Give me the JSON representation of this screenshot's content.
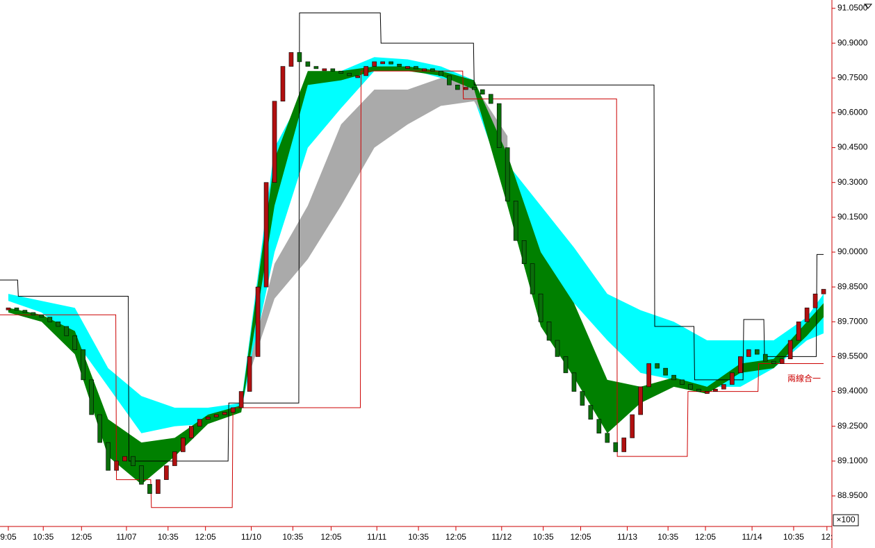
{
  "chart_data": {
    "type": "candlestick",
    "xlim": [
      -1,
      99
    ],
    "ylim": [
      88.88,
      91.08
    ],
    "yticks": [
      {
        "value": 91.05,
        "label": "91.0500"
      },
      {
        "value": 90.9,
        "label": "90.9000"
      },
      {
        "value": 90.75,
        "label": "90.7500"
      },
      {
        "value": 90.6,
        "label": "90.6000"
      },
      {
        "value": 90.45,
        "label": "90.4500"
      },
      {
        "value": 90.3,
        "label": "90.3000"
      },
      {
        "value": 90.15,
        "label": "90.1500"
      },
      {
        "value": 90.0,
        "label": "90.0000"
      },
      {
        "value": 89.85,
        "label": "89.8500"
      },
      {
        "value": 89.7,
        "label": "89.7000"
      },
      {
        "value": 89.55,
        "label": "89.5500"
      },
      {
        "value": 89.4,
        "label": "89.4000"
      },
      {
        "value": 89.25,
        "label": "89.2500"
      },
      {
        "value": 89.1,
        "label": "89.1000"
      },
      {
        "value": 88.95,
        "label": "88.9500"
      }
    ],
    "xticks": [
      {
        "value": 0,
        "label": "9:05"
      },
      {
        "value": 4.2,
        "label": "10:35"
      },
      {
        "value": 8.8,
        "label": "12:05"
      },
      {
        "value": 14.2,
        "label": "11/07"
      },
      {
        "value": 19.2,
        "label": "10:35"
      },
      {
        "value": 23.7,
        "label": "12:05"
      },
      {
        "value": 29.2,
        "label": "11/10"
      },
      {
        "value": 34.2,
        "label": "10:35"
      },
      {
        "value": 38.8,
        "label": "12:05"
      },
      {
        "value": 44.3,
        "label": "11/11"
      },
      {
        "value": 49.3,
        "label": "10:35"
      },
      {
        "value": 53.8,
        "label": "12:05"
      },
      {
        "value": 59.3,
        "label": "11/12"
      },
      {
        "value": 64.3,
        "label": "10:35"
      },
      {
        "value": 68.8,
        "label": "12:05"
      },
      {
        "value": 74.4,
        "label": "11/13"
      },
      {
        "value": 79.3,
        "label": "10:35"
      },
      {
        "value": 83.8,
        "label": "12:05"
      },
      {
        "value": 89.4,
        "label": "11/14"
      },
      {
        "value": 94.4,
        "label": "10:35"
      },
      {
        "value": 98.4,
        "label": "12:"
      }
    ],
    "scale_label": "×100",
    "annotation": "兩線合一",
    "up_color": "#b01010",
    "down_color": "#0a6e0a",
    "candles": {
      "close": [
        89.76,
        89.75,
        89.74,
        89.73,
        89.72,
        89.7,
        89.68,
        89.64,
        89.58,
        89.45,
        89.3,
        89.18,
        89.06,
        89.1,
        89.12,
        89.08,
        89.0,
        88.96,
        89.02,
        89.08,
        89.14,
        89.2,
        89.25,
        89.28,
        89.29,
        89.3,
        89.31,
        89.33,
        89.4,
        89.55,
        89.85,
        90.3,
        90.65,
        90.8,
        90.86,
        90.82,
        90.8,
        90.79,
        90.79,
        90.78,
        90.77,
        90.76,
        90.76,
        90.8,
        90.82,
        90.82,
        90.81,
        90.8,
        90.8,
        90.79,
        90.79,
        90.78,
        90.76,
        90.72,
        90.7,
        90.71,
        90.7,
        90.68,
        90.64,
        90.45,
        90.22,
        90.05,
        89.95,
        89.82,
        89.7,
        89.62,
        89.55,
        89.48,
        89.4,
        89.34,
        89.28,
        89.22,
        89.18,
        89.14,
        89.2,
        89.3,
        89.42,
        89.52,
        89.5,
        89.47,
        89.45,
        89.43,
        89.41,
        89.4,
        89.4,
        89.41,
        89.43,
        89.48,
        89.55,
        89.58,
        89.56,
        89.53,
        89.52,
        89.54,
        89.62,
        89.7,
        89.76,
        89.82,
        89.84
      ]
    },
    "bands": [
      {
        "color": "#00ffff",
        "x": [
          0,
          4,
          8,
          12,
          16,
          20,
          24,
          28,
          32,
          36,
          40,
          44,
          48,
          52,
          56,
          60,
          64,
          68,
          72,
          76,
          80,
          84,
          88,
          92,
          96,
          98
        ],
        "upper": [
          89.82,
          89.79,
          89.76,
          89.5,
          89.38,
          89.33,
          89.33,
          89.35,
          90.45,
          90.72,
          90.78,
          90.84,
          90.83,
          90.8,
          90.74,
          90.38,
          90.2,
          90.02,
          89.82,
          89.75,
          89.7,
          89.62,
          89.62,
          89.62,
          89.72,
          89.82
        ],
        "lower": [
          89.79,
          89.74,
          89.62,
          89.42,
          89.22,
          89.25,
          89.26,
          89.32,
          90.0,
          90.45,
          90.62,
          90.78,
          90.79,
          90.75,
          90.66,
          90.25,
          89.98,
          89.78,
          89.62,
          89.48,
          89.45,
          89.42,
          89.42,
          89.5,
          89.62,
          89.65
        ]
      },
      {
        "color": "#aaaaaa",
        "x": [
          29,
          32,
          36,
          40,
          44,
          48,
          52,
          56,
          60
        ],
        "upper": [
          89.52,
          89.95,
          90.2,
          90.55,
          90.7,
          90.7,
          90.75,
          90.72,
          90.5
        ],
        "lower": [
          89.48,
          89.8,
          89.97,
          90.2,
          90.45,
          90.55,
          90.63,
          90.65,
          90.4
        ]
      },
      {
        "color": "#008000",
        "x": [
          0,
          4,
          8,
          12,
          16,
          20,
          24,
          28,
          32,
          36,
          40,
          44,
          48,
          52,
          56,
          60,
          64,
          68,
          72,
          76,
          80,
          84,
          88,
          92,
          96,
          98
        ],
        "upper": [
          89.76,
          89.73,
          89.66,
          89.28,
          89.18,
          89.2,
          89.3,
          89.34,
          90.4,
          90.78,
          90.78,
          90.8,
          90.8,
          90.78,
          90.74,
          90.42,
          90.0,
          89.78,
          89.45,
          89.42,
          89.46,
          89.42,
          89.52,
          89.54,
          89.7,
          89.78
        ],
        "lower": [
          89.74,
          89.7,
          89.56,
          89.12,
          89.0,
          89.12,
          89.26,
          89.31,
          90.2,
          90.72,
          90.74,
          90.78,
          90.78,
          90.76,
          90.7,
          90.2,
          89.68,
          89.46,
          89.22,
          89.35,
          89.42,
          89.39,
          89.48,
          89.5,
          89.64,
          89.72
        ]
      }
    ],
    "steps": [
      {
        "color": "#000000",
        "x": [
          -1,
          1.2,
          14.5,
          26.5,
          35,
          44.8,
          56,
          77.7,
          82.5,
          88.4,
          90.9,
          97.2
        ],
        "values": [
          89.88,
          89.81,
          89.1,
          89.35,
          91.03,
          90.9,
          90.72,
          89.68,
          89.45,
          89.71,
          89.55,
          89.99
        ]
      },
      {
        "color": "#cc0000",
        "x": [
          -1,
          13,
          17.2,
          27,
          42.4,
          54.7,
          73.2,
          81.7,
          90.2
        ],
        "values": [
          89.73,
          89.02,
          88.9,
          89.33,
          90.78,
          90.66,
          89.12,
          89.4,
          89.52
        ]
      }
    ]
  }
}
